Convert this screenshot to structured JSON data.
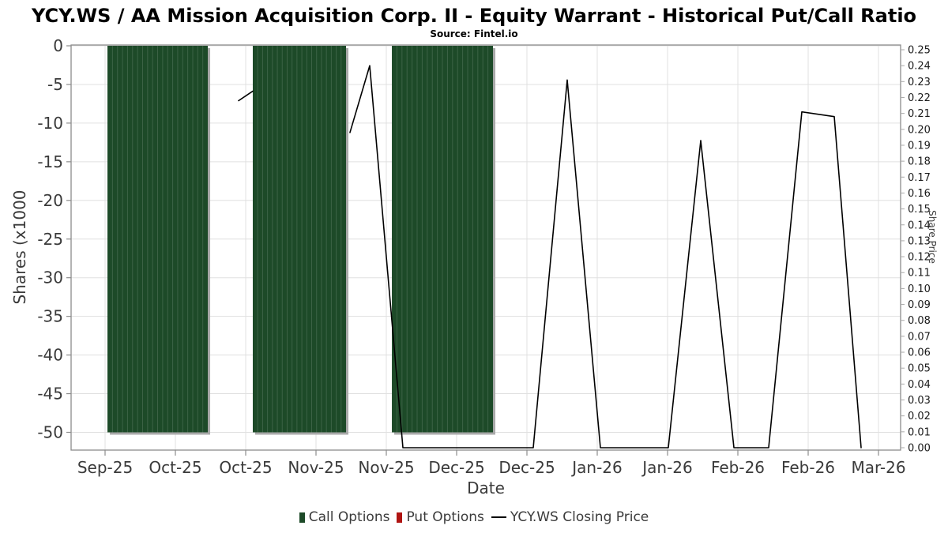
{
  "title": "YCY.WS / AA Mission Acquisition Corp. II - Equity Warrant - Historical Put/Call Ratio",
  "source": "Source: Fintel.io",
  "chart_data": {
    "type": "bar+line combo",
    "x_axis": {
      "label": "Date",
      "tick_labels": [
        "Sep-25",
        "Oct-25",
        "Oct-25",
        "Nov-25",
        "Nov-25",
        "Dec-25",
        "Dec-25",
        "Jan-26",
        "Jan-26",
        "Feb-26",
        "Feb-26",
        "Mar-26"
      ],
      "x_unit_note": "x positions of data below are in tick-index units (0 = first Sep-25 tick, ticks spaced at half-month intervals)"
    },
    "y_axis_left": {
      "label": "Shares (x1000",
      "ticks": [
        0,
        -5,
        -10,
        -15,
        -20,
        -25,
        -30,
        -35,
        -40,
        -45,
        -50
      ],
      "range": [
        -52.5,
        0.3
      ],
      "grid": true
    },
    "y_axis_right": {
      "label": "Share Price",
      "ticks": [
        "0.25",
        "0.24",
        "0.23",
        "0.22",
        "0.21",
        "0.20",
        "0.19",
        "0.18",
        "0.17",
        "0.16",
        "0.15",
        "0.14",
        "0.13",
        "0.12",
        "0.11",
        "0.10",
        "0.09",
        "0.08",
        "0.07",
        "0.06",
        "0.05",
        "0.04",
        "0.03",
        "0.02",
        "0.01",
        "0.00"
      ],
      "range": [
        0,
        0.25
      ]
    },
    "series": [
      {
        "name": "Call Options",
        "type": "bar",
        "value_axis": "left",
        "color": "#1d4a28",
        "bar_blocks": [
          {
            "t0": 0.034,
            "t1": 1.461,
            "value": -50,
            "n_bars": 20
          },
          {
            "t0": 2.101,
            "t1": 3.427,
            "value": -50,
            "n_bars": 19
          },
          {
            "t0": 4.079,
            "t1": 5.517,
            "value": -50,
            "n_bars": 20
          }
        ]
      },
      {
        "name": "Put Options",
        "type": "bar",
        "value_axis": "left",
        "color": "#b01412",
        "bar_blocks": []
      },
      {
        "name": "YCY.WS Closing Price",
        "type": "line",
        "value_axis": "right",
        "color": "#000000",
        "segments": [
          [
            [
              1.899,
              0.218
            ],
            [
              2.101,
              0.224
            ]
          ],
          [
            [
              3.483,
              0.198
            ],
            [
              3.764,
              0.24
            ],
            [
              4.236,
              0.0
            ],
            [
              6.09,
              0.0
            ],
            [
              6.573,
              0.231
            ],
            [
              7.045,
              0.0
            ],
            [
              8.011,
              0.0
            ],
            [
              8.472,
              0.193
            ],
            [
              8.944,
              0.0
            ],
            [
              9.438,
              0.0
            ],
            [
              9.91,
              0.211
            ],
            [
              10.371,
              0.208
            ],
            [
              10.753,
              0.0
            ]
          ]
        ]
      }
    ],
    "legend": [
      {
        "label": "Call Options",
        "marker": "square",
        "color": "#1d4a28"
      },
      {
        "label": "Put Options",
        "marker": "square",
        "color": "#b01412"
      },
      {
        "label": "YCY.WS Closing Price",
        "marker": "line",
        "color": "#000000"
      }
    ]
  }
}
